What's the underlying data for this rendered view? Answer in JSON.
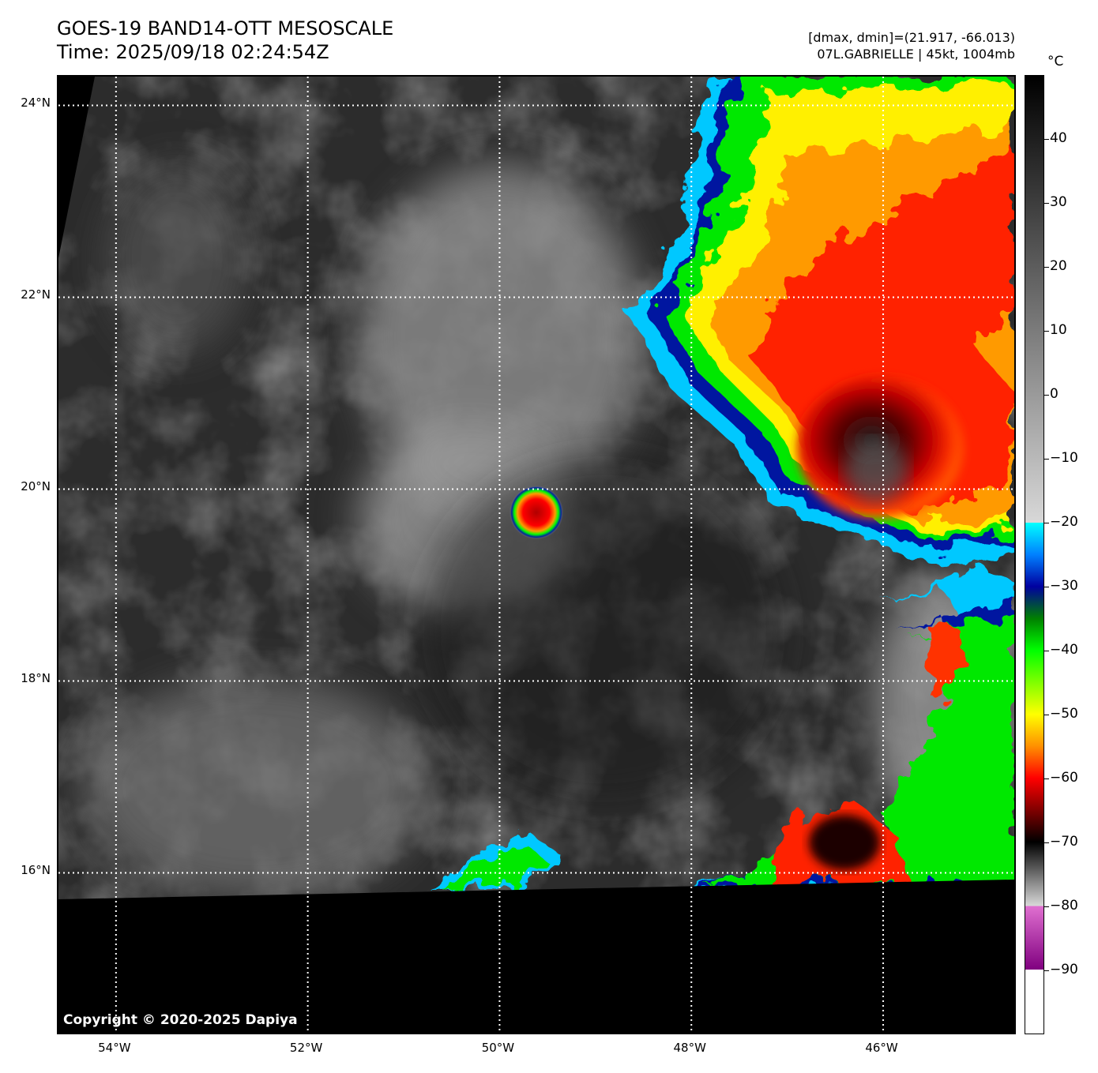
{
  "header": {
    "title_line1": "GOES-19 BAND14-OTT MESOSCALE",
    "title_line2": "Time: 2025/09/18 02:24:54Z",
    "dmax_dmin": "[dmax, dmin]=(21.917, -66.013)",
    "storm_info": "07L.GABRIELLE | 45kt, 1004mb"
  },
  "map": {
    "copyright": "Copyright © 2020-2025 Dapiya",
    "lat_labels": [
      "24°N",
      "22°N",
      "20°N",
      "18°N",
      "16°N"
    ],
    "lat_values": [
      24,
      22,
      20,
      18,
      16
    ],
    "lon_labels": [
      "54°W",
      "52°W",
      "50°W",
      "48°W",
      "46°W"
    ],
    "lon_values": [
      -54,
      -52,
      -50,
      -48,
      -46
    ],
    "lat_range": [
      14.3,
      24.3
    ],
    "lon_range": [
      -54.6,
      -44.6
    ],
    "gridlines": "dotted white"
  },
  "colorbar": {
    "unit": "°C",
    "tick_labels": [
      "40",
      "30",
      "20",
      "10",
      "0",
      "−10",
      "−20",
      "−30",
      "−40",
      "−50",
      "−60",
      "−70",
      "−80",
      "−90"
    ],
    "tick_values": [
      40,
      30,
      20,
      10,
      0,
      -10,
      -20,
      -30,
      -40,
      -50,
      -60,
      -70,
      -80,
      -90
    ],
    "range": [
      -100,
      50
    ]
  }
}
